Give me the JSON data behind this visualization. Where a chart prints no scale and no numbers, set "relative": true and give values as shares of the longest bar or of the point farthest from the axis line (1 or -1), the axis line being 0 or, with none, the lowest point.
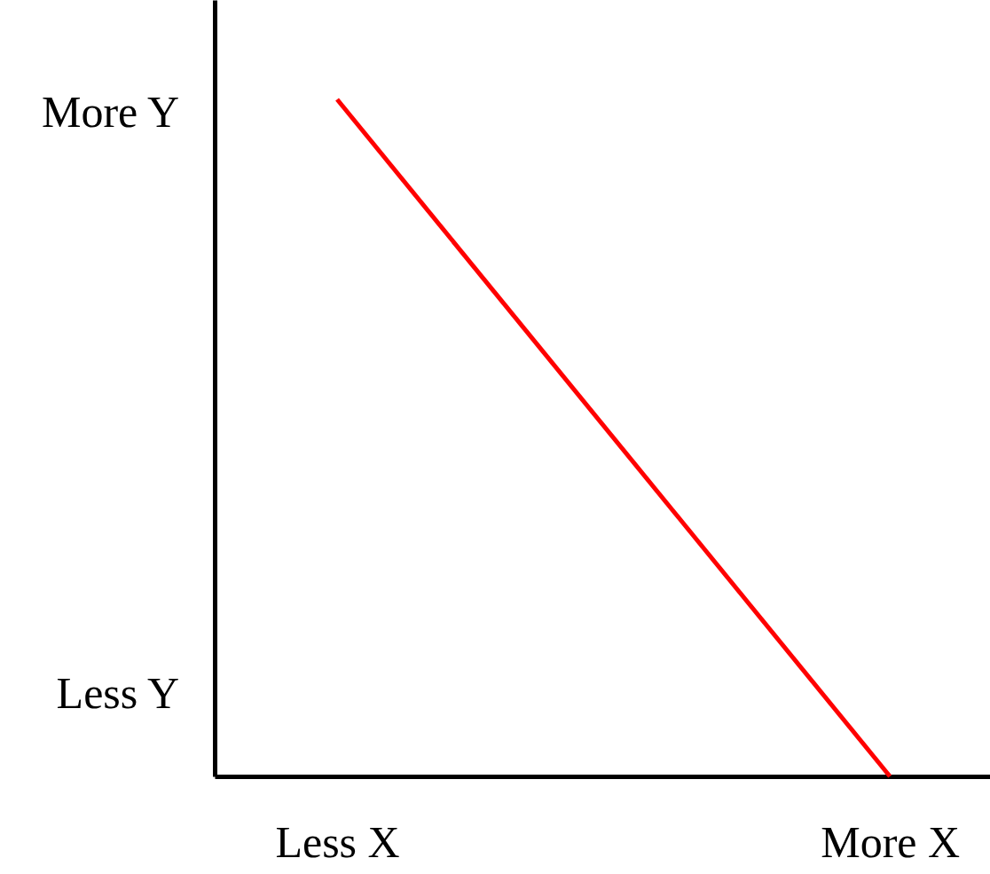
{
  "chart_data": {
    "type": "line",
    "relative": true,
    "categories": [
      "Less X",
      "More X"
    ],
    "values": [
      1,
      0
    ],
    "color": "#ff0000",
    "annotations": [
      "More Y",
      "Less Y"
    ]
  }
}
